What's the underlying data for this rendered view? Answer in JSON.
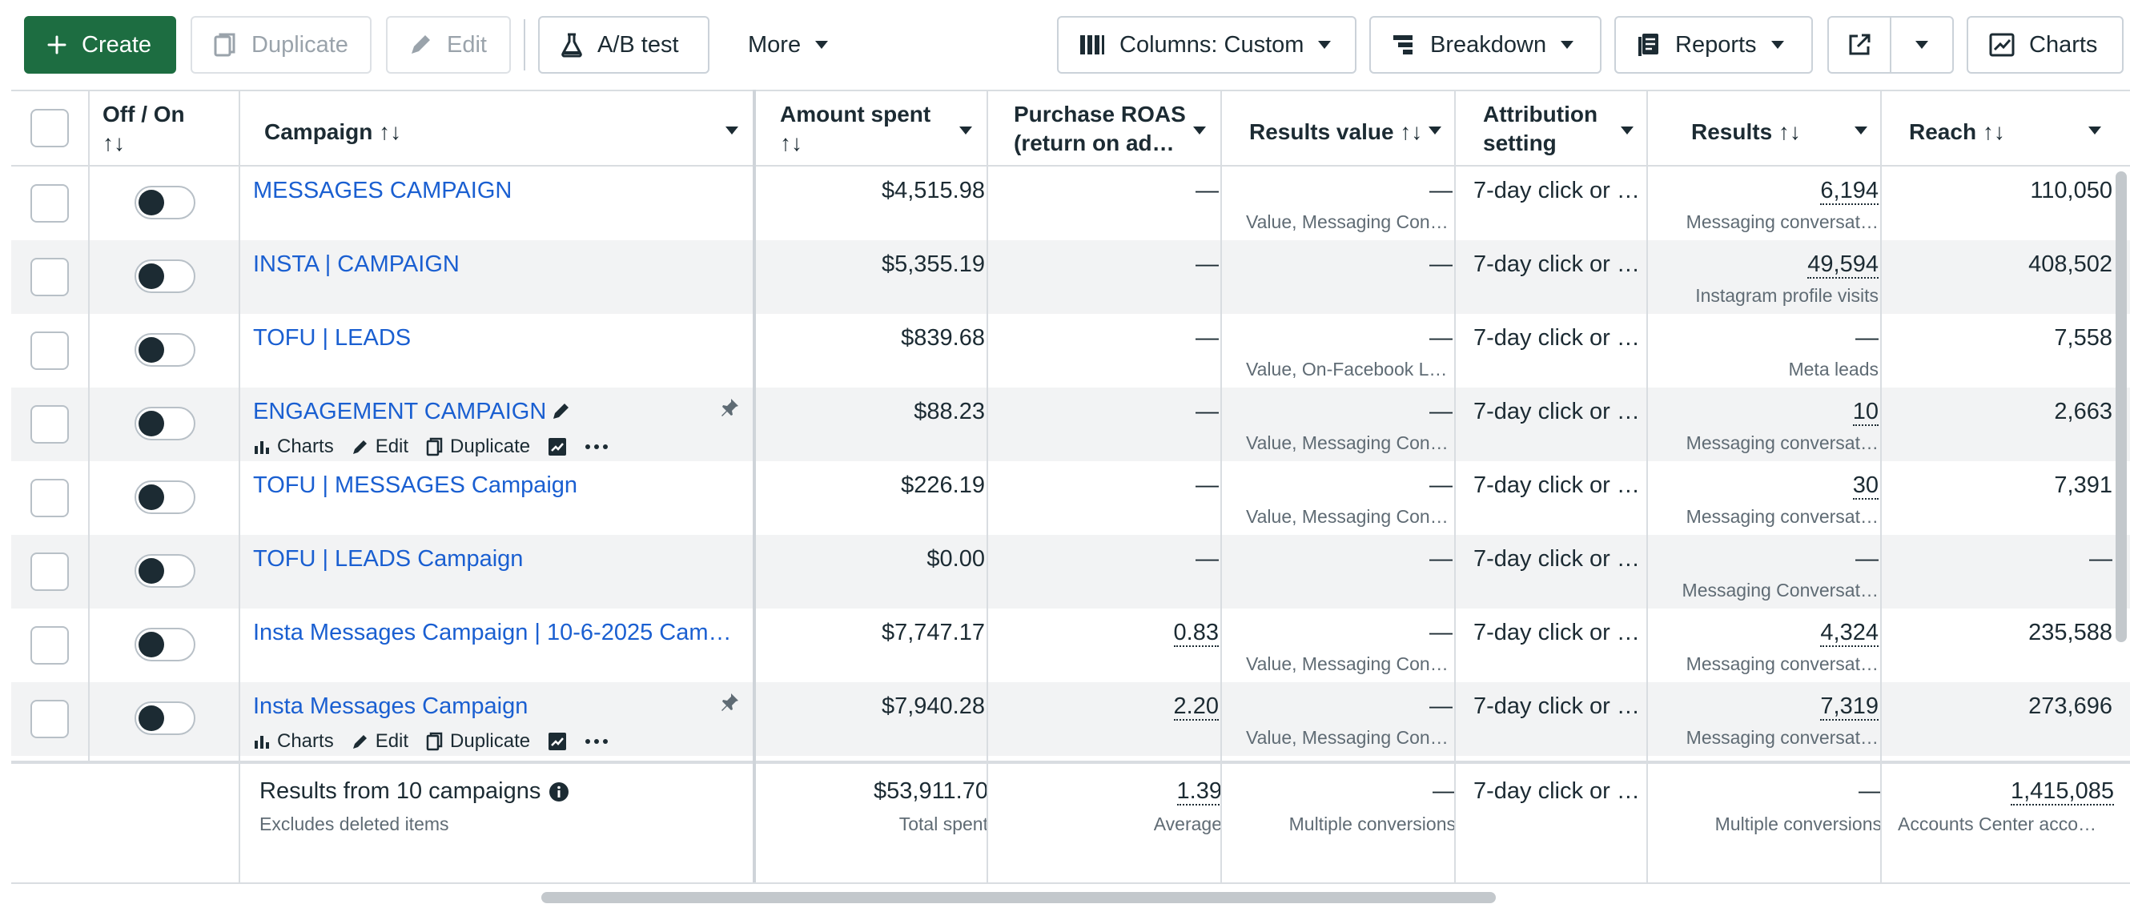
{
  "toolbar": {
    "create": "Create",
    "duplicate": "Duplicate",
    "edit": "Edit",
    "ab_test": "A/B test",
    "more": "More",
    "columns": "Columns: Custom",
    "breakdown": "Breakdown",
    "reports": "Reports",
    "charts": "Charts"
  },
  "headers": {
    "off_on_1": "Off / On",
    "off_on_2": "↑↓",
    "campaign": "Campaign ↑↓",
    "amount_1": "Amount spent",
    "amount_2": "↑↓",
    "roas_1": "Purchase ROAS",
    "roas_2": "(return on ad…",
    "results_value": "Results value ↑↓",
    "attr_1": "Attribution",
    "attr_2": "setting",
    "results": "Results ↑↓",
    "reach": "Reach ↑↓"
  },
  "row_actions": {
    "charts": "Charts",
    "edit": "Edit",
    "duplicate": "Duplicate"
  },
  "rows": [
    {
      "name": "MESSAGES CAMPAIGN",
      "spent": "$4,515.98",
      "roas": "—",
      "rv": "—",
      "rv_sub": "Value, Messaging Con…",
      "attr": "7-day click or …",
      "results": "6,194",
      "results_sub": "Messaging conversat…",
      "reach": "110,050"
    },
    {
      "name": "INSTA | CAMPAIGN",
      "spent": "$5,355.19",
      "roas": "—",
      "rv": "—",
      "rv_sub": "",
      "attr": "7-day click or …",
      "results": "49,594",
      "results_sub": "Instagram profile visits",
      "reach": "408,502"
    },
    {
      "name": "TOFU | LEADS",
      "spent": "$839.68",
      "roas": "—",
      "rv": "—",
      "rv_sub": "Value, On-Facebook L…",
      "attr": "7-day click or …",
      "results": "—",
      "results_sub": "Meta leads",
      "reach": "7,558"
    },
    {
      "name": "ENGAGEMENT CAMPAIGN",
      "spent": "$88.23",
      "roas": "—",
      "rv": "—",
      "rv_sub": "Value, Messaging Con…",
      "attr": "7-day click or …",
      "results": "10",
      "results_sub": "Messaging conversat…",
      "reach": "2,663"
    },
    {
      "name": "TOFU | MESSAGES Campaign",
      "spent": "$226.19",
      "roas": "—",
      "rv": "—",
      "rv_sub": "Value, Messaging Con…",
      "attr": "7-day click or …",
      "results": "30",
      "results_sub": "Messaging conversat…",
      "reach": "7,391"
    },
    {
      "name": "TOFU | LEADS Campaign",
      "spent": "$0.00",
      "roas": "—",
      "rv": "—",
      "rv_sub": "",
      "attr": "7-day click or …",
      "results": "—",
      "results_sub": "Messaging Conversat…",
      "reach": "—"
    },
    {
      "name": "Insta Messages Campaign | 10-6-2025 Camp…",
      "spent": "$7,747.17",
      "roas": "0.83",
      "rv": "—",
      "rv_sub": "Value, Messaging Con…",
      "attr": "7-day click or …",
      "results": "4,324",
      "results_sub": "Messaging conversat…",
      "reach": "235,588"
    },
    {
      "name": "Insta Messages Campaign",
      "spent": "$7,940.28",
      "roas": "2.20",
      "rv": "—",
      "rv_sub": "Value, Messaging Con…",
      "attr": "7-day click or …",
      "results": "7,319",
      "results_sub": "Messaging conversat…",
      "reach": "273,696"
    }
  ],
  "footer": {
    "title": "Results from 10 campaigns",
    "subtitle": "Excludes deleted items",
    "spent": "$53,911.70",
    "spent_sub": "Total spent",
    "roas": "1.39",
    "roas_sub": "Average",
    "rv": "—",
    "rv_sub": "Multiple conversions",
    "attr": "7-day click or …",
    "results": "—",
    "results_sub": "Multiple conversions",
    "reach": "1,415,085",
    "reach_sub": "Accounts Center acco…"
  },
  "colors": {
    "primary": "#1d6d41",
    "link": "#1a5fd1",
    "row_alt": "#f2f3f4"
  }
}
